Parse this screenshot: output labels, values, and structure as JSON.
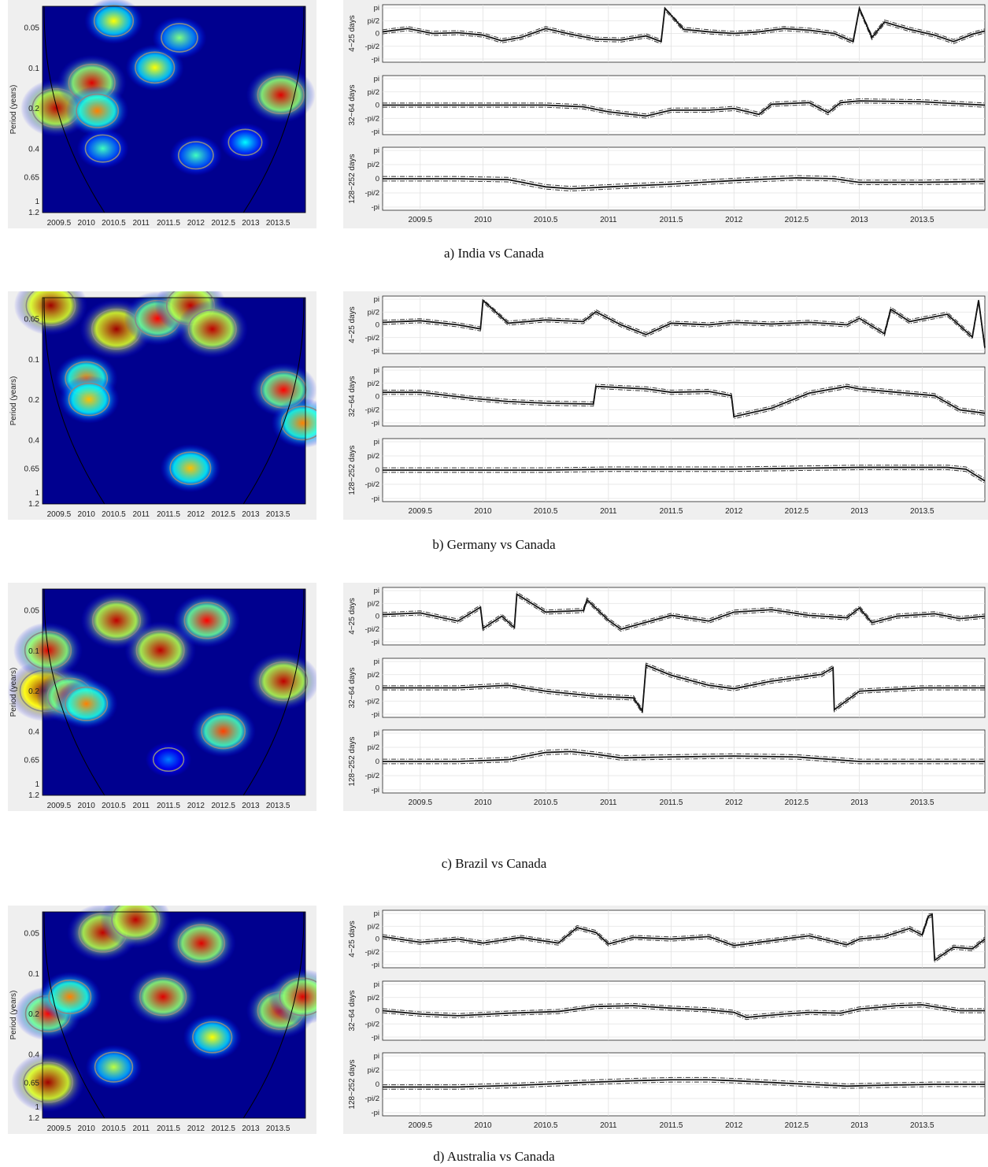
{
  "figures": [
    {
      "caption": "a) India vs Canada"
    },
    {
      "caption": "b) Germany vs Canada"
    },
    {
      "caption": "c) Brazil vs Canada"
    },
    {
      "caption": "d) Australia vs Canada"
    }
  ],
  "chart_data": [
    {
      "type": "heatmap",
      "title": "",
      "ylabel": "Period (years)",
      "x_ticks": [
        "2009.5",
        "2010",
        "2010.5",
        "2011",
        "2011.5",
        "2012",
        "2012.5",
        "2013",
        "2013.5"
      ],
      "y_ticks": [
        "0.05",
        "0.1",
        "0.2",
        "0.4",
        "0.65",
        "1",
        "1.2"
      ],
      "xlim": [
        2009.2,
        2014.0
      ],
      "colormap": [
        "#00008f",
        "#0000ff",
        "#00ffff",
        "#ffff00",
        "#ff0000",
        "#800000"
      ],
      "hotspots": [
        {
          "x": 2009.45,
          "p": 0.2,
          "v": 0.9
        },
        {
          "x": 2010.1,
          "p": 0.13,
          "v": 0.85
        },
        {
          "x": 2010.2,
          "p": 0.21,
          "v": 0.7
        },
        {
          "x": 2010.5,
          "p": 0.045,
          "v": 0.6
        },
        {
          "x": 2011.25,
          "p": 0.1,
          "v": 0.6
        },
        {
          "x": 2011.7,
          "p": 0.06,
          "v": 0.5
        },
        {
          "x": 2012.0,
          "p": 0.45,
          "v": 0.45
        },
        {
          "x": 2012.9,
          "p": 0.36,
          "v": 0.4
        },
        {
          "x": 2013.55,
          "p": 0.16,
          "v": 0.85
        },
        {
          "x": 2010.3,
          "p": 0.4,
          "v": 0.45
        }
      ]
    },
    {
      "type": "line",
      "row_labels": [
        "4~25 days",
        "32~64 days",
        "128~252 days"
      ],
      "y_ticks": [
        "pi",
        "pi/2",
        "0",
        "-pi/2",
        "-pi"
      ],
      "x_ticks": [
        "2009.5",
        "2010",
        "2010.5",
        "2011",
        "2011.5",
        "2012",
        "2012.5",
        "2013",
        "2013.5"
      ],
      "xlim": [
        2009.2,
        2014.0
      ],
      "series": [
        {
          "x": [
            2009.2,
            2009.4,
            2009.6,
            2009.8,
            2010.0,
            2010.15,
            2010.3,
            2010.5,
            2010.7,
            2010.9,
            2011.1,
            2011.3,
            2011.42,
            2011.45,
            2011.6,
            2011.8,
            2012.0,
            2012.2,
            2012.4,
            2012.6,
            2012.8,
            2012.95,
            2013.0,
            2013.1,
            2013.2,
            2013.4,
            2013.6,
            2013.75,
            2013.9,
            2014.0
          ],
          "y": [
            0.2,
            0.6,
            0.0,
            0.1,
            -0.2,
            -0.9,
            -0.5,
            0.6,
            -0.1,
            -0.7,
            -0.8,
            -0.3,
            -1.0,
            3.1,
            0.5,
            0.2,
            0.0,
            0.2,
            0.6,
            0.4,
            0.0,
            -1.0,
            3.1,
            -0.5,
            1.4,
            0.5,
            -0.2,
            -1.0,
            -0.1,
            0.3
          ]
        },
        {
          "x": [
            2009.2,
            2009.6,
            2010.0,
            2010.5,
            2010.8,
            2011.0,
            2011.3,
            2011.5,
            2011.8,
            2012.0,
            2012.2,
            2012.3,
            2012.6,
            2012.75,
            2012.85,
            2013.0,
            2013.5,
            2014.0
          ],
          "y": [
            0.0,
            0.0,
            0.0,
            0.0,
            -0.2,
            -0.8,
            -1.3,
            -0.6,
            -0.6,
            -0.4,
            -1.1,
            0.1,
            0.3,
            -0.9,
            0.3,
            0.5,
            0.4,
            0.0
          ]
        },
        {
          "x": [
            2009.2,
            2009.8,
            2010.2,
            2010.5,
            2010.7,
            2011.0,
            2011.5,
            2012.0,
            2012.5,
            2012.8,
            2013.0,
            2013.5,
            2014.0
          ],
          "y": [
            0.0,
            0.0,
            -0.1,
            -0.9,
            -1.1,
            -0.9,
            -0.6,
            -0.2,
            0.1,
            0.0,
            -0.4,
            -0.4,
            -0.3
          ]
        }
      ]
    },
    {
      "type": "heatmap",
      "title": "",
      "ylabel": "Period (years)",
      "x_ticks": [
        "2009.5",
        "2010",
        "2010.5",
        "2011",
        "2011.5",
        "2012",
        "2012.5",
        "2013",
        "2013.5"
      ],
      "y_ticks": [
        "0.05",
        "0.1",
        "0.2",
        "0.4",
        "0.65",
        "1",
        "1.2"
      ],
      "xlim": [
        2009.2,
        2014.0
      ],
      "colormap": [
        "#00008f",
        "#0000ff",
        "#00ffff",
        "#ffff00",
        "#ff0000",
        "#800000"
      ],
      "hotspots": [
        {
          "x": 2009.35,
          "p": 0.04,
          "v": 0.95
        },
        {
          "x": 2010.0,
          "p": 0.14,
          "v": 0.7
        },
        {
          "x": 2010.05,
          "p": 0.2,
          "v": 0.65
        },
        {
          "x": 2010.55,
          "p": 0.06,
          "v": 0.95
        },
        {
          "x": 2011.3,
          "p": 0.05,
          "v": 0.8
        },
        {
          "x": 2011.9,
          "p": 0.04,
          "v": 0.9
        },
        {
          "x": 2012.3,
          "p": 0.06,
          "v": 0.9
        },
        {
          "x": 2013.6,
          "p": 0.17,
          "v": 0.8
        },
        {
          "x": 2011.9,
          "p": 0.65,
          "v": 0.65
        },
        {
          "x": 2013.95,
          "p": 0.3,
          "v": 0.7
        }
      ]
    },
    {
      "type": "line",
      "row_labels": [
        "4~25 days",
        "32~64 days",
        "128~252 days"
      ],
      "y_ticks": [
        "pi",
        "pi/2",
        "0",
        "-pi/2",
        "-pi"
      ],
      "x_ticks": [
        "2009.5",
        "2010",
        "2010.5",
        "2011",
        "2011.5",
        "2012",
        "2012.5",
        "2013",
        "2013.5"
      ],
      "xlim": [
        2009.2,
        2014.0
      ],
      "series": [
        {
          "x": [
            2009.2,
            2009.5,
            2009.8,
            2009.98,
            2010.0,
            2010.2,
            2010.5,
            2010.8,
            2010.9,
            2011.1,
            2011.3,
            2011.5,
            2011.8,
            2012.0,
            2012.3,
            2012.6,
            2012.9,
            2013.0,
            2013.2,
            2013.25,
            2013.4,
            2013.7,
            2013.9,
            2013.95,
            2014.0
          ],
          "y": [
            0.3,
            0.5,
            0.0,
            -0.5,
            3.0,
            0.2,
            0.6,
            0.4,
            1.6,
            0.0,
            -1.2,
            0.2,
            0.0,
            0.3,
            0.1,
            0.3,
            0.0,
            0.8,
            -1.1,
            1.9,
            0.4,
            1.3,
            -1.5,
            3.0,
            -2.8
          ]
        },
        {
          "x": [
            2009.2,
            2009.5,
            2009.9,
            2010.2,
            2010.5,
            2010.88,
            2010.9,
            2011.3,
            2011.5,
            2011.8,
            2011.98,
            2012.0,
            2012.3,
            2012.6,
            2012.9,
            2013.0,
            2013.3,
            2013.6,
            2013.8,
            2014.0
          ],
          "y": [
            0.5,
            0.5,
            -0.2,
            -0.6,
            -0.8,
            -0.9,
            1.2,
            0.9,
            0.5,
            0.6,
            0.1,
            -2.4,
            -1.4,
            0.4,
            1.2,
            0.9,
            0.5,
            0.1,
            -1.6,
            -2.0
          ]
        },
        {
          "x": [
            2009.2,
            2009.8,
            2010.5,
            2011.0,
            2011.5,
            2012.0,
            2012.5,
            2013.0,
            2013.4,
            2013.7,
            2013.85,
            2014.0
          ],
          "y": [
            0.0,
            0.0,
            0.0,
            0.1,
            0.1,
            0.1,
            0.2,
            0.3,
            0.3,
            0.3,
            0.1,
            -1.2
          ]
        }
      ]
    },
    {
      "type": "heatmap",
      "title": "",
      "ylabel": "Period (years)",
      "x_ticks": [
        "2009.5",
        "2010",
        "2010.5",
        "2011",
        "2011.5",
        "2012",
        "2012.5",
        "2013",
        "2013.5"
      ],
      "y_ticks": [
        "0.05",
        "0.1",
        "0.2",
        "0.4",
        "0.65",
        "1",
        "1.2"
      ],
      "xlim": [
        2009.2,
        2014.0
      ],
      "colormap": [
        "#00008f",
        "#0000ff",
        "#00ffff",
        "#ffff00",
        "#ff0000",
        "#800000"
      ],
      "hotspots": [
        {
          "x": 2009.25,
          "p": 0.2,
          "v": 1.0
        },
        {
          "x": 2009.3,
          "p": 0.1,
          "v": 0.85
        },
        {
          "x": 2009.7,
          "p": 0.22,
          "v": 0.8
        },
        {
          "x": 2010.0,
          "p": 0.25,
          "v": 0.7
        },
        {
          "x": 2010.55,
          "p": 0.06,
          "v": 0.9
        },
        {
          "x": 2011.35,
          "p": 0.1,
          "v": 0.9
        },
        {
          "x": 2012.2,
          "p": 0.06,
          "v": 0.8
        },
        {
          "x": 2013.6,
          "p": 0.17,
          "v": 0.9
        },
        {
          "x": 2012.5,
          "p": 0.4,
          "v": 0.75
        },
        {
          "x": 2011.5,
          "p": 0.65,
          "v": 0.3
        }
      ]
    },
    {
      "type": "line",
      "row_labels": [
        "4~25 days",
        "32~64 days",
        "128~252 days"
      ],
      "y_ticks": [
        "pi",
        "pi/2",
        "0",
        "-pi/2",
        "-pi"
      ],
      "x_ticks": [
        "2009.5",
        "2010",
        "2010.5",
        "2011",
        "2011.5",
        "2012",
        "2012.5",
        "2013",
        "2013.5"
      ],
      "xlim": [
        2009.2,
        2014.0
      ],
      "series": [
        {
          "x": [
            2009.2,
            2009.5,
            2009.8,
            2009.98,
            2010.0,
            2010.15,
            2010.25,
            2010.27,
            2010.5,
            2010.8,
            2010.83,
            2011.0,
            2011.1,
            2011.5,
            2011.8,
            2012.0,
            2012.3,
            2012.6,
            2012.9,
            2013.0,
            2013.1,
            2013.3,
            2013.6,
            2013.8,
            2014.0
          ],
          "y": [
            0.2,
            0.4,
            -0.6,
            1.1,
            -1.5,
            0.0,
            -1.4,
            2.7,
            0.5,
            0.7,
            2.0,
            -0.5,
            -1.6,
            0.1,
            -0.6,
            0.5,
            0.8,
            0.1,
            -0.2,
            1.0,
            -0.8,
            0.0,
            0.3,
            -0.3,
            0.0
          ]
        },
        {
          "x": [
            2009.2,
            2009.8,
            2010.2,
            2010.5,
            2010.9,
            2011.2,
            2011.27,
            2011.3,
            2011.5,
            2011.8,
            2012.0,
            2012.3,
            2012.7,
            2012.79,
            2012.8,
            2013.0,
            2013.5,
            2014.0
          ],
          "y": [
            0.0,
            0.0,
            0.3,
            -0.4,
            -1.0,
            -1.2,
            -2.8,
            2.7,
            1.5,
            0.3,
            -0.1,
            0.8,
            1.6,
            2.4,
            -2.6,
            -0.4,
            0.0,
            0.0
          ]
        },
        {
          "x": [
            2009.2,
            2009.8,
            2010.2,
            2010.5,
            2010.7,
            2010.9,
            2011.1,
            2011.5,
            2012.0,
            2012.5,
            2012.8,
            2013.0,
            2013.5,
            2014.0
          ],
          "y": [
            0.0,
            0.0,
            0.2,
            1.0,
            1.1,
            0.8,
            0.4,
            0.5,
            0.6,
            0.5,
            0.2,
            0.0,
            0.0,
            0.0
          ]
        }
      ]
    },
    {
      "type": "heatmap",
      "title": "",
      "ylabel": "Period (years)",
      "x_ticks": [
        "2009.5",
        "2010",
        "2010.5",
        "2011",
        "2011.5",
        "2012",
        "2012.5",
        "2013",
        "2013.5"
      ],
      "y_ticks": [
        "0.05",
        "0.1",
        "0.2",
        "0.4",
        "0.65",
        "1",
        "1.2"
      ],
      "xlim": [
        2009.2,
        2014.0
      ],
      "colormap": [
        "#00008f",
        "#0000ff",
        "#00ffff",
        "#ffff00",
        "#ff0000",
        "#800000"
      ],
      "hotspots": [
        {
          "x": 2009.3,
          "p": 0.65,
          "v": 0.95
        },
        {
          "x": 2009.3,
          "p": 0.2,
          "v": 0.8
        },
        {
          "x": 2009.7,
          "p": 0.15,
          "v": 0.7
        },
        {
          "x": 2010.3,
          "p": 0.05,
          "v": 0.9
        },
        {
          "x": 2010.9,
          "p": 0.04,
          "v": 0.9
        },
        {
          "x": 2011.4,
          "p": 0.15,
          "v": 0.85
        },
        {
          "x": 2012.1,
          "p": 0.06,
          "v": 0.85
        },
        {
          "x": 2013.55,
          "p": 0.19,
          "v": 0.85
        },
        {
          "x": 2012.3,
          "p": 0.3,
          "v": 0.6
        },
        {
          "x": 2010.5,
          "p": 0.5,
          "v": 0.55
        },
        {
          "x": 2013.95,
          "p": 0.15,
          "v": 0.85
        }
      ]
    },
    {
      "type": "line",
      "row_labels": [
        "4~25 days",
        "32~64 days",
        "128~252 days"
      ],
      "y_ticks": [
        "pi",
        "pi/2",
        "0",
        "-pi/2",
        "-pi"
      ],
      "x_ticks": [
        "2009.5",
        "2010",
        "2010.5",
        "2011",
        "2011.5",
        "2012",
        "2012.5",
        "2013",
        "2013.5"
      ],
      "xlim": [
        2009.2,
        2014.0
      ],
      "series": [
        {
          "x": [
            2009.2,
            2009.5,
            2009.8,
            2010.0,
            2010.3,
            2010.6,
            2010.75,
            2010.9,
            2011.0,
            2011.2,
            2011.5,
            2011.8,
            2012.0,
            2012.3,
            2012.6,
            2012.9,
            2013.0,
            2013.2,
            2013.4,
            2013.5,
            2013.55,
            2013.58,
            2013.6,
            2013.75,
            2013.9,
            2014.0
          ],
          "y": [
            0.3,
            -0.4,
            0.0,
            -0.5,
            0.2,
            -0.5,
            1.4,
            0.8,
            -0.6,
            0.2,
            0.0,
            0.3,
            -0.8,
            -0.2,
            0.4,
            -0.7,
            0.0,
            0.3,
            1.3,
            0.5,
            2.8,
            3.0,
            -2.6,
            -1.0,
            -1.2,
            0.0
          ]
        },
        {
          "x": [
            2009.2,
            2009.5,
            2009.8,
            2010.2,
            2010.6,
            2010.9,
            2011.2,
            2011.5,
            2011.8,
            2012.0,
            2012.1,
            2012.4,
            2012.6,
            2012.85,
            2013.0,
            2013.3,
            2013.5,
            2013.8,
            2014.0
          ],
          "y": [
            0.0,
            -0.4,
            -0.6,
            -0.3,
            -0.1,
            0.5,
            0.6,
            0.3,
            0.1,
            -0.2,
            -0.8,
            -0.4,
            -0.2,
            -0.3,
            0.2,
            0.6,
            0.7,
            0.0,
            0.0
          ]
        },
        {
          "x": [
            2009.2,
            2009.8,
            2010.3,
            2010.8,
            2011.2,
            2011.5,
            2011.8,
            2012.0,
            2012.3,
            2012.6,
            2012.9,
            2013.2,
            2013.6,
            2014.0
          ],
          "y": [
            -0.3,
            -0.3,
            -0.1,
            0.2,
            0.4,
            0.5,
            0.5,
            0.4,
            0.2,
            0.0,
            -0.2,
            -0.1,
            0.0,
            0.0
          ]
        }
      ]
    }
  ]
}
